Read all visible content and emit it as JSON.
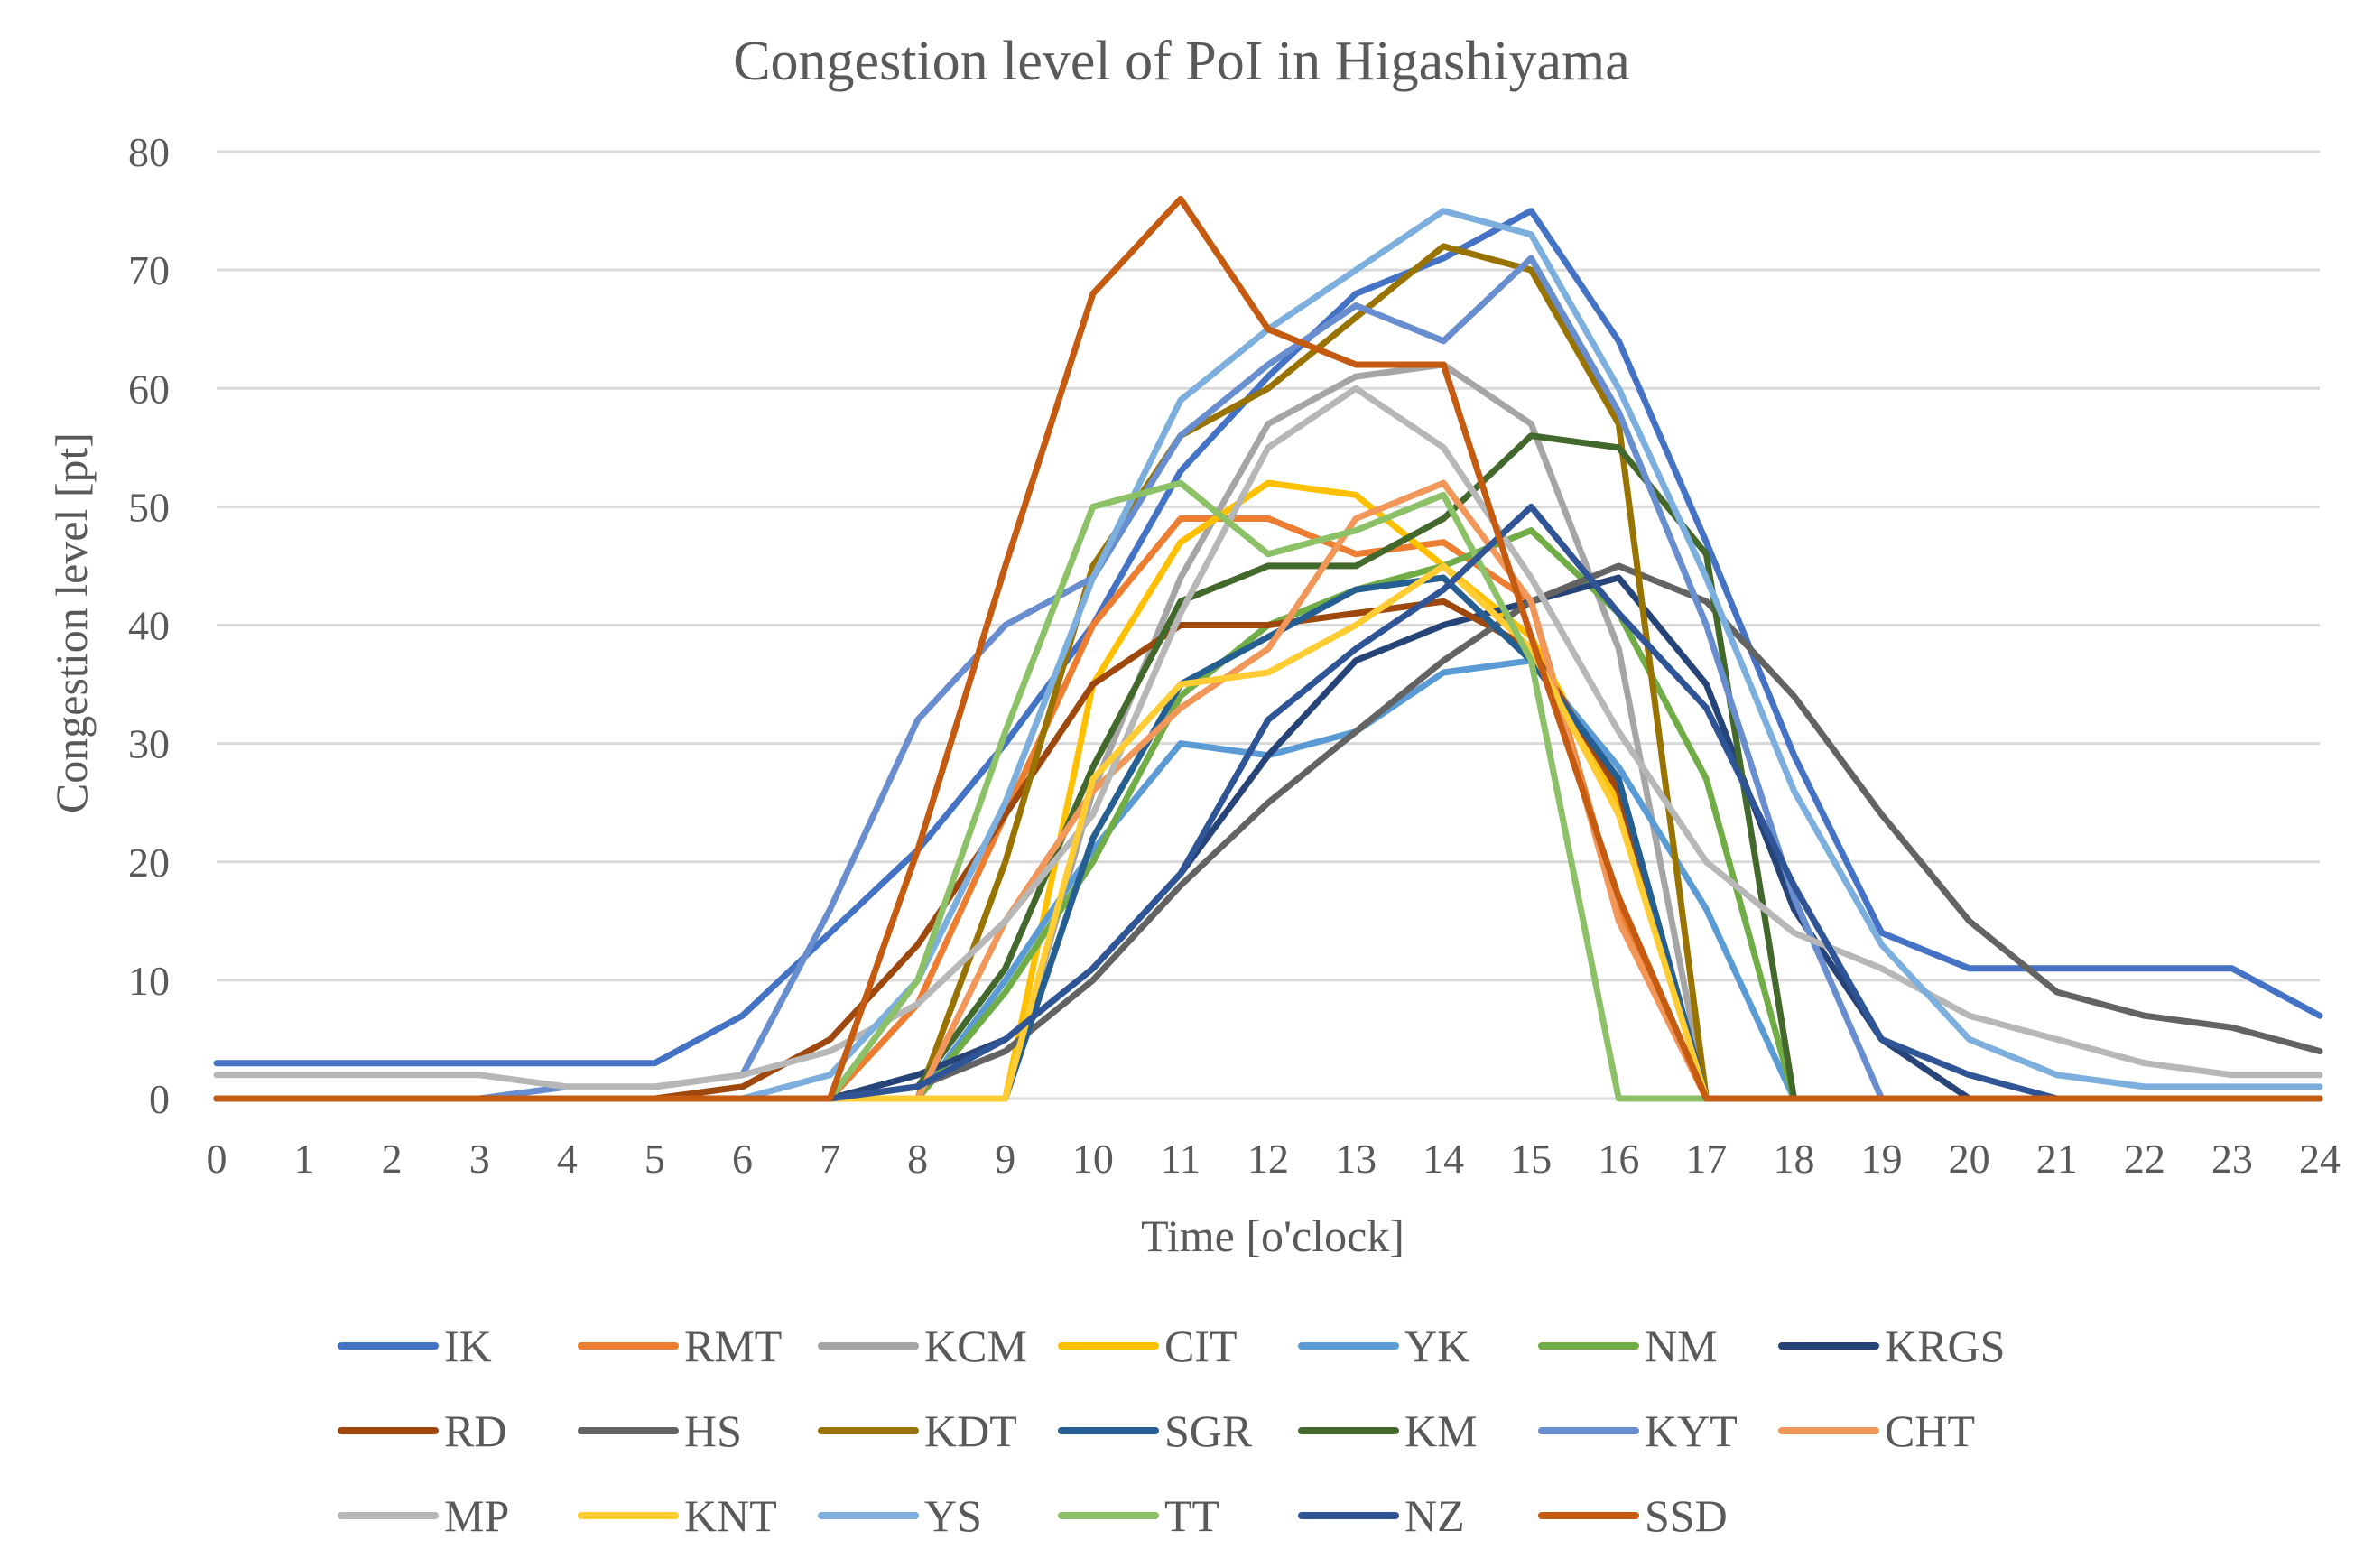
{
  "chart_data": {
    "type": "line",
    "title": "Congestion level of PoI in Higashiyama",
    "xlabel": "Time [o'clock]",
    "ylabel": "Congestion level [pt]",
    "ylim": [
      0,
      80
    ],
    "yticks": [
      0,
      10,
      20,
      30,
      40,
      50,
      60,
      70,
      80
    ],
    "grid": true,
    "legend_position": "bottom",
    "x": [
      0,
      1,
      2,
      3,
      4,
      5,
      6,
      7,
      8,
      9,
      10,
      11,
      12,
      13,
      14,
      15,
      16,
      17,
      18,
      19,
      20,
      21,
      22,
      23,
      24
    ],
    "series": [
      {
        "name": "IK",
        "color": "#4472C4",
        "values": [
          3,
          3,
          3,
          3,
          3,
          3,
          7,
          14,
          21,
          30,
          40,
          53,
          61,
          68,
          71,
          75,
          64,
          47,
          29,
          14,
          11,
          11,
          11,
          11,
          7
        ]
      },
      {
        "name": "RMT",
        "color": "#ED7D31",
        "values": [
          0,
          0,
          0,
          0,
          0,
          0,
          0,
          0,
          8,
          24,
          40,
          49,
          49,
          46,
          47,
          42,
          16,
          0,
          0,
          0,
          0,
          0,
          0,
          0,
          0
        ]
      },
      {
        "name": "KCM",
        "color": "#A5A5A5",
        "values": [
          0,
          0,
          0,
          0,
          0,
          0,
          0,
          0,
          0,
          0,
          26,
          44,
          57,
          61,
          62,
          57,
          38,
          0,
          0,
          0,
          0,
          0,
          0,
          0,
          0
        ]
      },
      {
        "name": "CIT",
        "color": "#FFC000",
        "values": [
          0,
          0,
          0,
          0,
          0,
          0,
          0,
          0,
          0,
          0,
          35,
          47,
          52,
          51,
          45,
          39,
          25,
          0,
          0,
          0,
          0,
          0,
          0,
          0,
          0
        ]
      },
      {
        "name": "YK",
        "color": "#5B9BD5",
        "values": [
          0,
          0,
          0,
          0,
          0,
          0,
          0,
          0,
          0,
          10,
          21,
          30,
          29,
          31,
          36,
          37,
          28,
          16,
          0,
          0,
          0,
          0,
          0,
          0,
          0
        ]
      },
      {
        "name": "NM",
        "color": "#70AD47",
        "values": [
          0,
          0,
          0,
          0,
          0,
          0,
          0,
          0,
          0,
          9,
          20,
          34,
          40,
          43,
          45,
          48,
          41,
          27,
          0,
          0,
          0,
          0,
          0,
          0,
          0
        ]
      },
      {
        "name": "KRGS",
        "color": "#264478",
        "values": [
          0,
          0,
          0,
          0,
          0,
          0,
          0,
          0,
          2,
          5,
          11,
          19,
          29,
          37,
          40,
          42,
          44,
          35,
          16,
          5,
          0,
          0,
          0,
          0,
          0
        ]
      },
      {
        "name": "RD",
        "color": "#9E480E",
        "values": [
          0,
          0,
          0,
          0,
          0,
          0,
          1,
          5,
          13,
          24,
          35,
          40,
          40,
          41,
          42,
          38,
          26,
          0,
          0,
          0,
          0,
          0,
          0,
          0,
          0
        ]
      },
      {
        "name": "HS",
        "color": "#636363",
        "values": [
          0,
          0,
          0,
          0,
          0,
          0,
          0,
          0,
          1,
          4,
          10,
          18,
          25,
          31,
          37,
          42,
          45,
          42,
          34,
          24,
          15,
          9,
          7,
          6,
          4
        ]
      },
      {
        "name": "KDT",
        "color": "#997300",
        "values": [
          0,
          0,
          0,
          0,
          0,
          0,
          0,
          0,
          0,
          20,
          45,
          56,
          60,
          66,
          72,
          70,
          57,
          0,
          0,
          0,
          0,
          0,
          0,
          0,
          0
        ]
      },
      {
        "name": "SGR",
        "color": "#255E91",
        "values": [
          0,
          0,
          0,
          0,
          0,
          0,
          0,
          0,
          0,
          0,
          22,
          35,
          39,
          43,
          44,
          37,
          27,
          0,
          0,
          0,
          0,
          0,
          0,
          0,
          0
        ]
      },
      {
        "name": "KM",
        "color": "#43682B",
        "values": [
          0,
          0,
          0,
          0,
          0,
          0,
          0,
          0,
          1,
          11,
          28,
          42,
          45,
          45,
          49,
          56,
          55,
          46,
          0,
          0,
          0,
          0,
          0,
          0,
          0
        ]
      },
      {
        "name": "KYT",
        "color": "#698ED0",
        "values": [
          0,
          0,
          0,
          0,
          1,
          1,
          2,
          16,
          32,
          40,
          44,
          56,
          62,
          67,
          64,
          71,
          58,
          40,
          17,
          0,
          0,
          0,
          0,
          0,
          0
        ]
      },
      {
        "name": "CHT",
        "color": "#F1975A",
        "values": [
          0,
          0,
          0,
          0,
          0,
          0,
          0,
          0,
          0,
          15,
          26,
          33,
          38,
          49,
          52,
          42,
          15,
          0,
          0,
          0,
          0,
          0,
          0,
          0,
          0
        ]
      },
      {
        "name": "MP",
        "color": "#B7B7B7",
        "values": [
          2,
          2,
          2,
          2,
          1,
          1,
          2,
          4,
          8,
          15,
          24,
          41,
          55,
          60,
          55,
          44,
          31,
          20,
          14,
          11,
          7,
          5,
          3,
          2,
          2
        ]
      },
      {
        "name": "KNT",
        "color": "#FFCD33",
        "values": [
          0,
          0,
          0,
          0,
          0,
          0,
          0,
          0,
          0,
          0,
          27,
          35,
          36,
          40,
          45,
          38,
          24,
          0,
          0,
          0,
          0,
          0,
          0,
          0,
          0
        ]
      },
      {
        "name": "YS",
        "color": "#7CAFDD",
        "values": [
          0,
          0,
          0,
          0,
          0,
          0,
          0,
          2,
          10,
          25,
          44,
          59,
          65,
          70,
          75,
          73,
          60,
          44,
          26,
          13,
          5,
          2,
          1,
          1,
          1
        ]
      },
      {
        "name": "TT",
        "color": "#8CC168",
        "values": [
          0,
          0,
          0,
          0,
          0,
          0,
          0,
          0,
          10,
          31,
          50,
          52,
          46,
          48,
          51,
          37,
          0,
          0,
          0,
          0,
          0,
          0,
          0,
          0,
          0
        ]
      },
      {
        "name": "NZ",
        "color": "#2F5597",
        "values": [
          0,
          0,
          0,
          0,
          0,
          0,
          0,
          0,
          1,
          5,
          11,
          19,
          32,
          38,
          43,
          50,
          41,
          33,
          18,
          5,
          2,
          0,
          0,
          0,
          0
        ]
      },
      {
        "name": "SSD",
        "color": "#C55A11",
        "values": [
          0,
          0,
          0,
          0,
          0,
          0,
          0,
          0,
          21,
          45,
          68,
          76,
          65,
          62,
          62,
          39,
          17,
          0,
          0,
          0,
          0,
          0,
          0,
          0,
          0
        ]
      }
    ]
  }
}
